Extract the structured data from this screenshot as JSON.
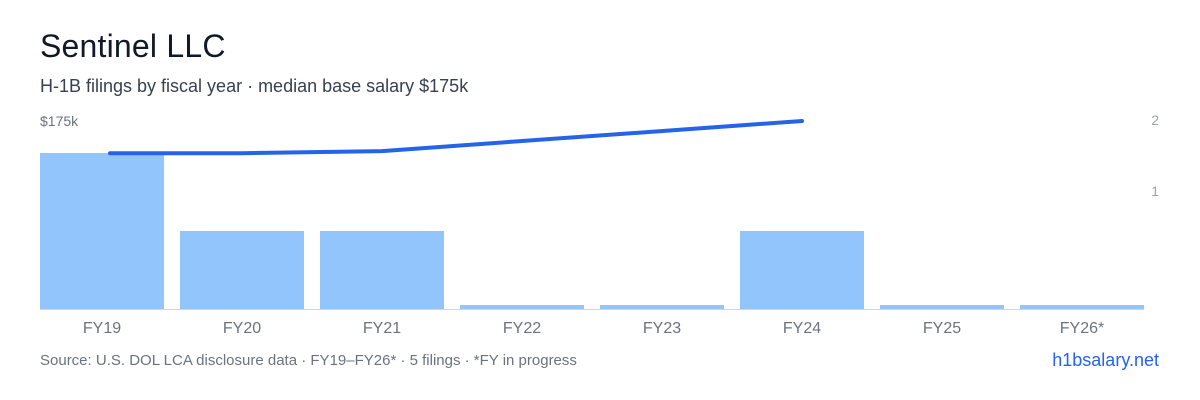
{
  "header": {
    "title": "Sentinel LLC",
    "subtitle": "H-1B filings by fiscal year · median base salary $175k"
  },
  "footer": {
    "source": "Source: U.S. DOL LCA disclosure data · FY19–FY26* · 5 filings · *FY in progress",
    "brand": "h1bsalary.net"
  },
  "colors": {
    "bar": "#93c5fd",
    "line": "#2563eb",
    "axis": "#d1d5db",
    "tick_text": "#6b7280",
    "right_tick_text": "#9ca3af"
  },
  "chart_data": {
    "type": "bar",
    "categories": [
      "FY19",
      "FY20",
      "FY21",
      "FY22",
      "FY23",
      "FY24",
      "FY25",
      "FY26*"
    ],
    "series": [
      {
        "kind": "bar",
        "axis": "right",
        "values": [
          2,
          1,
          1,
          0,
          0,
          1,
          0,
          0
        ]
      },
      {
        "kind": "line",
        "axis": "left",
        "values": [
          145000,
          145000,
          147000,
          null,
          null,
          175000,
          null,
          null
        ],
        "connect_gaps": true
      }
    ],
    "left_axis": {
      "top_label": "$175k",
      "max": 175000,
      "min": 0
    },
    "right_axis": {
      "ticks": [
        2,
        1
      ],
      "max": 2,
      "min": 0
    },
    "grid": false,
    "legend": "none"
  }
}
